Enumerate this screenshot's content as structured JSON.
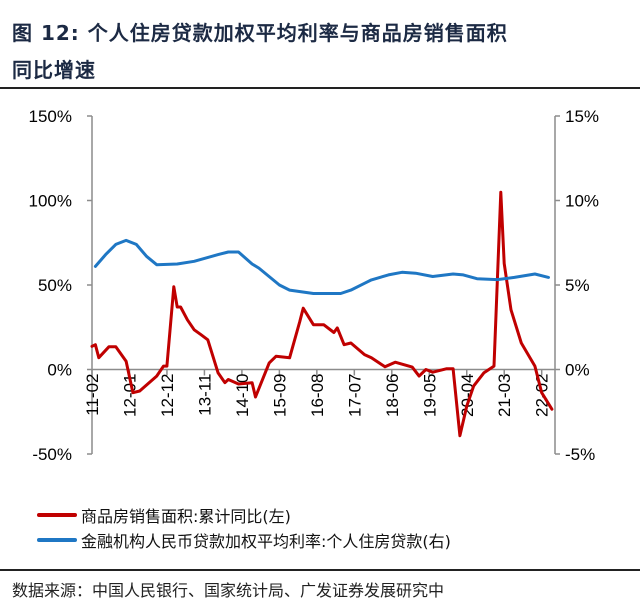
{
  "title_line1": "图  12: 个人住房贷款加权平均利率与商品房销售面积",
  "title_line2": "同比增速",
  "source": "数据来源：中国人民银行、国家统计局、广发证券发展研究中",
  "chart_data": {
    "type": "line",
    "title": "图 12: 个人住房贷款加权平均利率与商品房销售面积同比增速",
    "x_start": "2011-02",
    "x_end": "2022-05",
    "x_ticks": [
      "11-02",
      "12-01",
      "12-12",
      "13-11",
      "14-10",
      "15-09",
      "16-08",
      "17-07",
      "18-06",
      "19-05",
      "20-04",
      "21-03",
      "22-02"
    ],
    "y_left": {
      "range": [
        -50,
        150
      ],
      "ticks": [
        "-50%",
        "0%",
        "50%",
        "100%",
        "150%"
      ],
      "tick_values": [
        -50,
        0,
        50,
        100,
        150
      ]
    },
    "y_right": {
      "range": [
        -5,
        15
      ],
      "ticks": [
        "-5%",
        "0%",
        "5%",
        "10%",
        "15%"
      ],
      "tick_values": [
        -5,
        0,
        5,
        10,
        15
      ]
    },
    "grid": false,
    "legend_position": "bottom",
    "series": [
      {
        "name": "商品房销售面积:累计同比(左)",
        "axis": "left",
        "color": "#c00000",
        "points": [
          [
            "2011-02",
            13.7
          ],
          [
            "2011-03",
            14.7
          ],
          [
            "2011-04",
            7
          ],
          [
            "2011-07",
            13.5
          ],
          [
            "2011-09",
            13.5
          ],
          [
            "2011-12",
            4.9
          ],
          [
            "2012-02",
            -13.7
          ],
          [
            "2012-04",
            -12.7
          ],
          [
            "2012-09",
            -3.9
          ],
          [
            "2012-11",
            2
          ],
          [
            "2012-12",
            2
          ],
          [
            "2013-02",
            49
          ],
          [
            "2013-03",
            37
          ],
          [
            "2013-04",
            37
          ],
          [
            "2013-06",
            29.4
          ],
          [
            "2013-08",
            23.5
          ],
          [
            "2013-10",
            20.6
          ],
          [
            "2013-12",
            17.6
          ],
          [
            "2014-03",
            -2
          ],
          [
            "2014-05",
            -7.8
          ],
          [
            "2014-06",
            -5.9
          ],
          [
            "2014-09",
            -8.6
          ],
          [
            "2015-01",
            -7.8
          ],
          [
            "2015-02",
            -16.3
          ],
          [
            "2015-06",
            3.9
          ],
          [
            "2015-08",
            7.8
          ],
          [
            "2015-12",
            6.9
          ],
          [
            "2016-03",
            28.4
          ],
          [
            "2016-04",
            36.3
          ],
          [
            "2016-07",
            26.5
          ],
          [
            "2016-10",
            26.5
          ],
          [
            "2017-01",
            21.9
          ],
          [
            "2017-02",
            24.6
          ],
          [
            "2017-04",
            14.7
          ],
          [
            "2017-06",
            15.7
          ],
          [
            "2017-10",
            8.8
          ],
          [
            "2017-12",
            7
          ],
          [
            "2018-04",
            1.6
          ],
          [
            "2018-07",
            4.3
          ],
          [
            "2018-12",
            1.4
          ],
          [
            "2019-02",
            -3.9
          ],
          [
            "2019-04",
            0
          ],
          [
            "2019-06",
            -1.6
          ],
          [
            "2019-10",
            0.4
          ],
          [
            "2019-12",
            0.4
          ],
          [
            "2020-02",
            -39.2
          ],
          [
            "2020-04",
            -21.6
          ],
          [
            "2020-06",
            -9.8
          ],
          [
            "2020-09",
            -2
          ],
          [
            "2020-12",
            2
          ],
          [
            "2021-02",
            104.9
          ],
          [
            "2021-03",
            62.7
          ],
          [
            "2021-05",
            35.3
          ],
          [
            "2021-08",
            15.7
          ],
          [
            "2021-12",
            2
          ],
          [
            "2022-02",
            -13.7
          ],
          [
            "2022-05",
            -23.5
          ]
        ]
      },
      {
        "name": "金融机构人民币贷款加权平均利率:个人住房贷款(右)",
        "axis": "right",
        "color": "#1f77c4",
        "points": [
          [
            "2011-03",
            6.1
          ],
          [
            "2011-06",
            6.8
          ],
          [
            "2011-09",
            7.4
          ],
          [
            "2011-12",
            7.64
          ],
          [
            "2012-03",
            7.4
          ],
          [
            "2012-06",
            6.7
          ],
          [
            "2012-09",
            6.2
          ],
          [
            "2013-03",
            6.24
          ],
          [
            "2013-08",
            6.4
          ],
          [
            "2014-03",
            6.8
          ],
          [
            "2014-06",
            6.95
          ],
          [
            "2014-09",
            6.95
          ],
          [
            "2015-01",
            6.24
          ],
          [
            "2015-03",
            6.0
          ],
          [
            "2015-09",
            5.0
          ],
          [
            "2015-12",
            4.7
          ],
          [
            "2016-07",
            4.5
          ],
          [
            "2017-03",
            4.5
          ],
          [
            "2017-06",
            4.7
          ],
          [
            "2017-10",
            5.1
          ],
          [
            "2017-12",
            5.3
          ],
          [
            "2018-05",
            5.6
          ],
          [
            "2018-09",
            5.75
          ],
          [
            "2019-01",
            5.7
          ],
          [
            "2019-06",
            5.5
          ],
          [
            "2019-12",
            5.65
          ],
          [
            "2020-03",
            5.6
          ],
          [
            "2020-07",
            5.37
          ],
          [
            "2021-01",
            5.32
          ],
          [
            "2021-06",
            5.45
          ],
          [
            "2021-12",
            5.65
          ],
          [
            "2022-04",
            5.45
          ]
        ]
      }
    ]
  }
}
